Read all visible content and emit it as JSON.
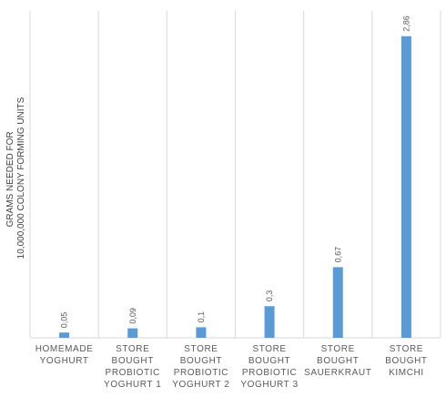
{
  "chart_data": {
    "type": "bar",
    "ylabel": [
      "GRAMS NEEDED FOR",
      "10,000,000 COLONY FORMING UNITS"
    ],
    "categories": [
      [
        "HOMEMADE",
        "YOGHURT"
      ],
      [
        "STORE",
        "BOUGHT",
        "PROBIOTIC",
        "YOGHURT 1"
      ],
      [
        "STORE",
        "BOUGHT",
        "PROBIOTIC",
        "YOGHURT 2"
      ],
      [
        "STORE",
        "BOUGHT",
        "PROBIOTIC",
        "YOGHURT 3"
      ],
      [
        "STORE",
        "BOUGHT",
        "SAUERKRAUT"
      ],
      [
        "STORE",
        "BOUGHT",
        "KIMCHI"
      ]
    ],
    "values": [
      0.05,
      0.09,
      0.1,
      0.3,
      0.67,
      2.86
    ],
    "data_labels": [
      "0,05",
      "0,09",
      "0,1",
      "0,3",
      "0,67",
      "2,86"
    ],
    "ylim": [
      0,
      3.1
    ],
    "grid": "vertical",
    "bar_color": "#5b9bd5"
  }
}
